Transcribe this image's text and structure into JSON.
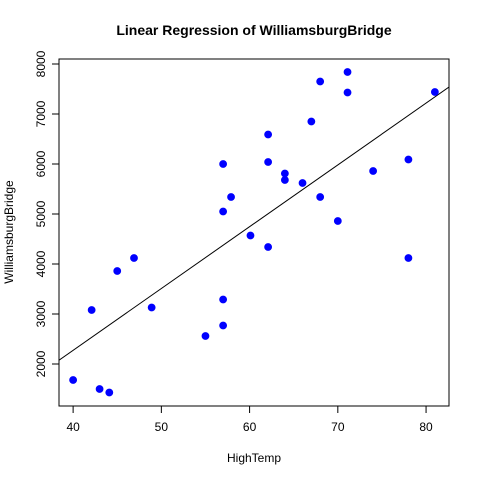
{
  "chart_data": {
    "type": "scatter",
    "title": "Linear Regression of WilliamsburgBridge",
    "xlabel": "HighTemp",
    "ylabel": "WilliamsburgBridge",
    "xlim": [
      38.4,
      82.6
    ],
    "ylim": [
      1160,
      8100
    ],
    "xticks": [
      40,
      50,
      60,
      70,
      80
    ],
    "yticks": [
      2000,
      3000,
      4000,
      5000,
      6000,
      7000,
      8000
    ],
    "grid": false,
    "point_color": "#0000ff",
    "line_color": "#000000",
    "points": [
      {
        "x": 40,
        "y": 1680
      },
      {
        "x": 42.1,
        "y": 3080
      },
      {
        "x": 43,
        "y": 1500
      },
      {
        "x": 44.1,
        "y": 1430
      },
      {
        "x": 45,
        "y": 3860
      },
      {
        "x": 46.9,
        "y": 4120
      },
      {
        "x": 48.9,
        "y": 3130
      },
      {
        "x": 55,
        "y": 2560
      },
      {
        "x": 57,
        "y": 2770
      },
      {
        "x": 57,
        "y": 3290
      },
      {
        "x": 57,
        "y": 5050
      },
      {
        "x": 57,
        "y": 6000
      },
      {
        "x": 57.9,
        "y": 5340
      },
      {
        "x": 60.1,
        "y": 4570
      },
      {
        "x": 62.1,
        "y": 4340
      },
      {
        "x": 62.1,
        "y": 6040
      },
      {
        "x": 62.1,
        "y": 6590
      },
      {
        "x": 64,
        "y": 5810
      },
      {
        "x": 64,
        "y": 5680
      },
      {
        "x": 66,
        "y": 5620
      },
      {
        "x": 67,
        "y": 6850
      },
      {
        "x": 68,
        "y": 7650
      },
      {
        "x": 68,
        "y": 5340
      },
      {
        "x": 70,
        "y": 4860
      },
      {
        "x": 71.1,
        "y": 7840
      },
      {
        "x": 71.1,
        "y": 7430
      },
      {
        "x": 74,
        "y": 5860
      },
      {
        "x": 78,
        "y": 6090
      },
      {
        "x": 78,
        "y": 4120
      },
      {
        "x": 81,
        "y": 7440
      }
    ],
    "regression": {
      "slope": 123.6,
      "intercept": -2670
    }
  }
}
